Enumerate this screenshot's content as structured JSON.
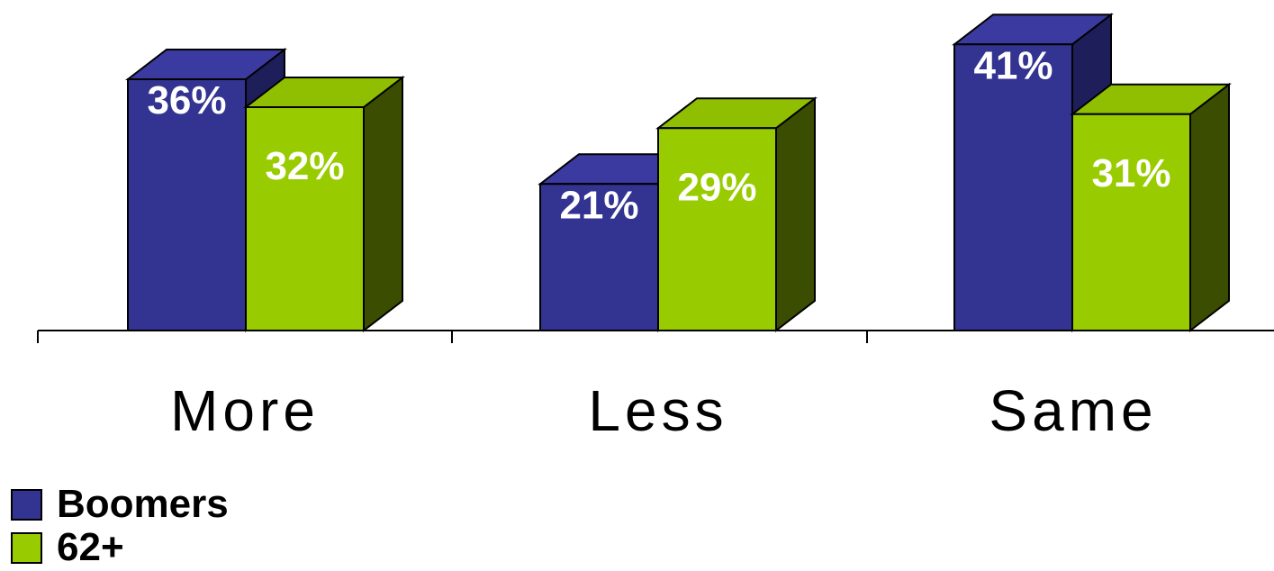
{
  "chart_data": {
    "type": "bar",
    "categories": [
      "More",
      "Less",
      "Same"
    ],
    "series": [
      {
        "name": "Boomers",
        "values": [
          36,
          21,
          41
        ],
        "labels": [
          "36%",
          "21%",
          "41%"
        ]
      },
      {
        "name": "62+",
        "values": [
          32,
          29,
          31
        ],
        "labels": [
          "32%",
          "29%",
          "31%"
        ]
      }
    ],
    "value_format": "percent",
    "ylim": [
      0,
      45
    ],
    "grid": false,
    "legend_placement": "bottom-left",
    "style": "3d-clustered-bar"
  },
  "colors": {
    "boomers_front": "#333391",
    "boomers_side": "#1e1e5a",
    "boomers_top": "#3a3aa0",
    "plus62_front": "#99cc00",
    "plus62_side": "#3a4d00",
    "plus62_top": "#8fbf00",
    "outline": "#000000"
  }
}
